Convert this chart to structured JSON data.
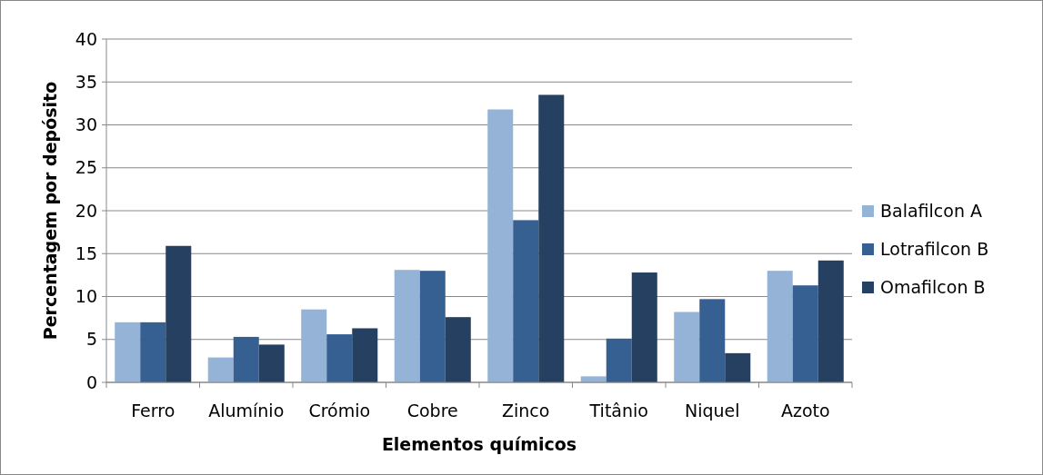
{
  "chart_data": {
    "type": "bar",
    "xlabel": "Elementos químicos",
    "ylabel": "Percentagem por depósito",
    "categories": [
      "Ferro",
      "Alumínio",
      "Crómio",
      "Cobre",
      "Zinco",
      "Titânio",
      "Niquel",
      "Azoto"
    ],
    "series": [
      {
        "name": "Balafilcon A",
        "color": "#95b3d7",
        "values": [
          7,
          2.9,
          8.5,
          13.1,
          31.8,
          0.7,
          8.2,
          13
        ]
      },
      {
        "name": "Lotrafilcon B",
        "color": "#376092",
        "values": [
          7,
          5.3,
          5.6,
          13,
          18.9,
          5.1,
          9.7,
          11.3
        ]
      },
      {
        "name": "Omafilcon B",
        "color": "#254061",
        "values": [
          15.9,
          4.4,
          6.3,
          7.6,
          33.5,
          12.8,
          3.4,
          14.2
        ]
      }
    ],
    "ylim": [
      0,
      40
    ],
    "yticks": [
      0,
      5,
      10,
      15,
      20,
      25,
      30,
      35,
      40
    ],
    "grid": "y",
    "legend": "right"
  }
}
